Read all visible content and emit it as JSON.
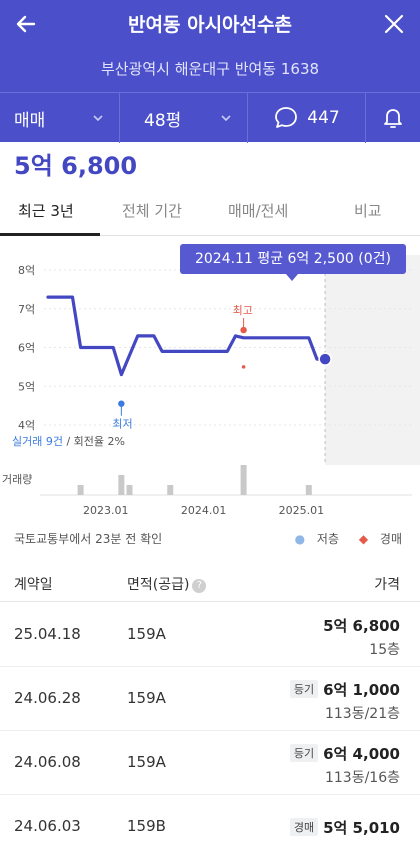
{
  "header": {
    "title": "반여동 아시아선수촌",
    "address": "부산광역시 해운대구 반여동 1638",
    "trade_type": "매매",
    "size": "48평",
    "comment_count": "447"
  },
  "price": "5억 6,800",
  "tabs": [
    "최근 3년",
    "전체 기간",
    "매매/전세",
    "비교"
  ],
  "tooltip": "2024.11 평균 6억 2,500 (0건)",
  "chart_data": {
    "type": "line",
    "y_ticks": [
      "8억",
      "7억",
      "6억",
      "5억",
      "4억"
    ],
    "ylim": [
      4,
      8
    ],
    "x_ticks": [
      "2023.01",
      "2024.01",
      "2025.01"
    ],
    "series": [
      {
        "x": [
          "2022.06",
          "2022.08",
          "2022.09",
          "2022.10",
          "2022.12",
          "2023.01",
          "2023.02",
          "2023.03",
          "2023.05",
          "2023.06",
          "2023.07",
          "2023.08",
          "2023.10",
          "2023.12",
          "2024.02",
          "2024.04",
          "2024.05",
          "2024.06",
          "2024.08",
          "2024.10",
          "2024.11",
          "2024.12",
          "2025.01",
          "2025.02",
          "2025.03",
          "2025.04"
        ],
        "values": [
          7.3,
          7.3,
          7.3,
          6.0,
          6.0,
          6.0,
          6.0,
          5.3,
          6.3,
          6.3,
          6.3,
          5.9,
          5.9,
          5.9,
          5.9,
          5.9,
          6.3,
          6.25,
          6.25,
          6.25,
          6.25,
          6.25,
          6.25,
          6.25,
          5.7,
          5.7
        ]
      }
    ],
    "annotations": [
      {
        "label": "최고",
        "x": "2024.06",
        "value": 6.45
      },
      {
        "label": "최저",
        "x": "2023.03",
        "value": 4.55
      }
    ],
    "auction_point": {
      "x": "2024.06",
      "value": 5.5
    },
    "latest_point": {
      "x": "2025.04",
      "value": 5.7
    },
    "stats_label": "실거래 9건",
    "stats_rate": " / 회전율 2%",
    "volume_label": "거래량",
    "volume": [
      {
        "x": "2022.10",
        "value": 1
      },
      {
        "x": "2023.03",
        "value": 2
      },
      {
        "x": "2023.04",
        "value": 1
      },
      {
        "x": "2023.09",
        "value": 1
      },
      {
        "x": "2024.06",
        "value": 3
      },
      {
        "x": "2025.02",
        "value": 1
      }
    ]
  },
  "source_note": "국토교통부에서 23분 전 확인",
  "legend": {
    "low_floor": "저층",
    "auction": "경매"
  },
  "table": {
    "headers": {
      "date": "계약일",
      "area": "면적(공급)",
      "price": "가격"
    },
    "rows": [
      {
        "date": "25.04.18",
        "area": "159A",
        "badge": "",
        "price": "5억 6,800",
        "floor": "15층"
      },
      {
        "date": "24.06.28",
        "area": "159A",
        "badge": "등기",
        "price": "6억 1,000",
        "floor": "113동/21층"
      },
      {
        "date": "24.06.08",
        "area": "159A",
        "badge": "등기",
        "price": "6억 4,000",
        "floor": "113동/16층"
      },
      {
        "date": "24.06.03",
        "area": "159B",
        "badge": "경매",
        "price": "5억 5,010",
        "floor": ""
      }
    ]
  },
  "colors": {
    "brand": "#4b4fc9",
    "line": "#4347c2",
    "auction": "#e45b4a",
    "high": "#e45b4a"
  }
}
